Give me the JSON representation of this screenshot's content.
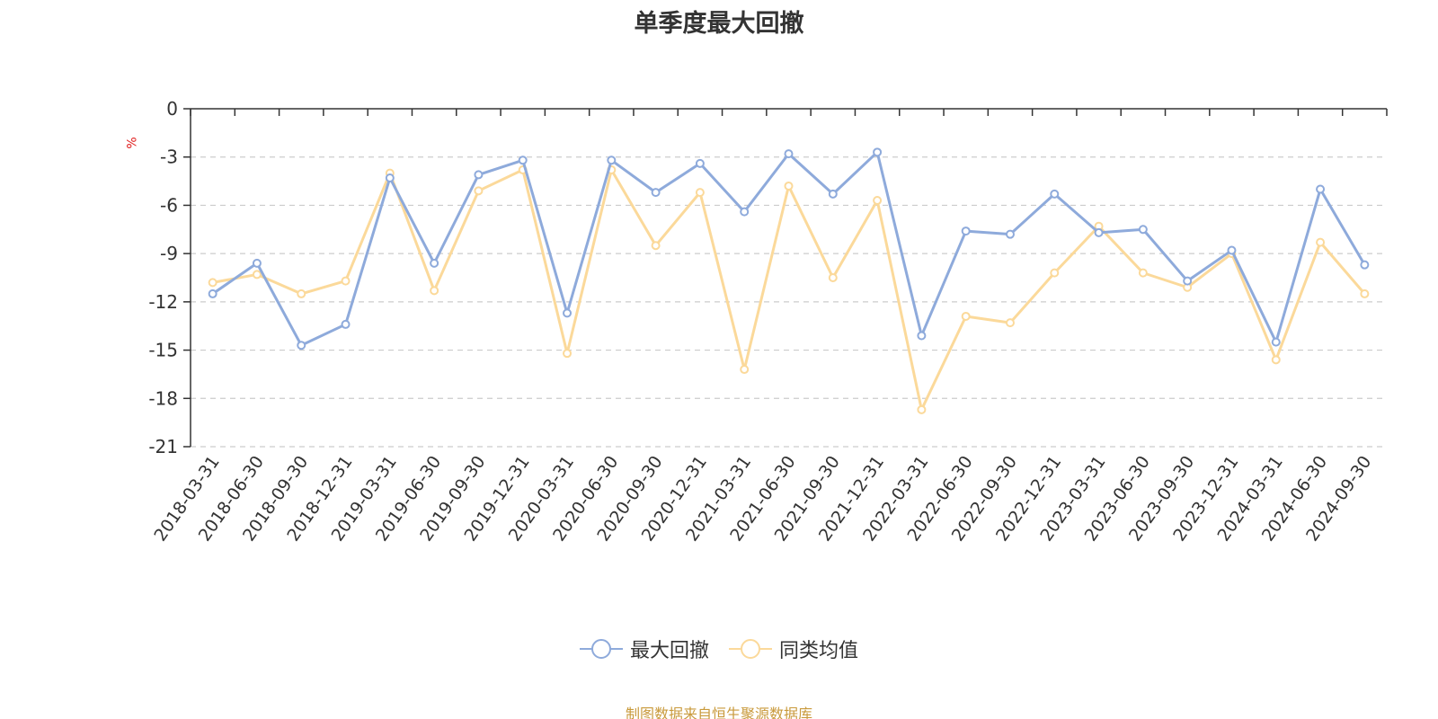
{
  "chart_data": {
    "type": "line",
    "title": "单季度最大回撤",
    "ylabel": "%",
    "ylim": [
      -21,
      0
    ],
    "yticks": [
      0,
      -3,
      -6,
      -9,
      -12,
      -15,
      -18,
      -21
    ],
    "grid": true,
    "legend_position": "bottom",
    "categories": [
      "2018-03-31",
      "2018-06-30",
      "2018-09-30",
      "2018-12-31",
      "2019-03-31",
      "2019-06-30",
      "2019-09-30",
      "2019-12-31",
      "2020-03-31",
      "2020-06-30",
      "2020-09-30",
      "2020-12-31",
      "2021-03-31",
      "2021-06-30",
      "2021-09-30",
      "2021-12-31",
      "2022-03-31",
      "2022-06-30",
      "2022-09-30",
      "2022-12-31",
      "2023-03-31",
      "2023-06-30",
      "2023-09-30",
      "2023-12-31",
      "2024-03-31",
      "2024-06-30",
      "2024-09-30"
    ],
    "series": [
      {
        "name": "最大回撤",
        "color": "#8eaadb",
        "values": [
          -11.5,
          -9.6,
          -14.7,
          -13.4,
          -4.3,
          -9.6,
          -4.1,
          -3.2,
          -12.7,
          -3.2,
          -5.2,
          -3.4,
          -6.4,
          -2.8,
          -5.3,
          -2.7,
          -14.1,
          -7.6,
          -7.8,
          -5.3,
          -7.7,
          -7.5,
          -10.7,
          -8.8,
          -14.5,
          -5.0,
          -9.7
        ]
      },
      {
        "name": "同类均值",
        "color": "#fbd99a",
        "values": [
          -10.8,
          -10.3,
          -11.5,
          -10.7,
          -4.0,
          -11.3,
          -5.1,
          -3.8,
          -15.2,
          -3.8,
          -8.5,
          -5.2,
          -16.2,
          -4.8,
          -10.5,
          -5.7,
          -18.7,
          -12.9,
          -13.3,
          -10.2,
          -7.3,
          -10.2,
          -11.1,
          -9.0,
          -15.6,
          -8.3,
          -11.5
        ]
      }
    ]
  },
  "source_note": "制图数据来自恒生聚源数据库"
}
